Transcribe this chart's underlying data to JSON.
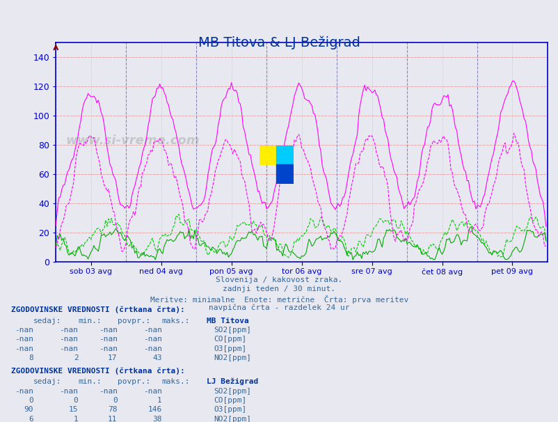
{
  "title": "MB Titova & LJ Bežigrad",
  "title_color": "#003399",
  "background_color": "#e8e8f0",
  "plot_bg_color": "#e8e8f0",
  "y_label": "",
  "x_ticks_labels": [
    "sob 03 avg",
    "ned 04 avg",
    "pon 05 avg",
    "tor 06 avg",
    "sre 07 avg",
    "čet 08 avg",
    "pet 09 avg"
  ],
  "y_ticks": [
    0,
    20,
    40,
    60,
    80,
    100,
    120,
    140
  ],
  "ylim": [
    0,
    150
  ],
  "subtitle_lines": [
    "Slovenija / kakovost zraka.",
    "zadnji teden / 30 minut.",
    "Meritve: minimalne  Enote: metrične  Črta: prva meritev",
    "navpična črta - razdelek 24 ur"
  ],
  "subtitle_color": "#336699",
  "watermark": "www.si-vreme.com",
  "legend_color": "#336699",
  "table_header_color": "#003399",
  "table_text_color": "#336699",
  "colors": {
    "SO2_MB": "#000080",
    "CO_MB": "#00aaff",
    "O3_MB": "#ff00ff",
    "NO2_MB": "#008800",
    "SO2_LJ": "#000080",
    "CO_LJ": "#00ccff",
    "O3_LJ": "#ff00ff",
    "NO2_LJ": "#008800"
  },
  "grid_color": "#aaaaaa",
  "vline_color": "#8888bb",
  "hline_color": "#ffaaaa",
  "axis_color": "#0000cc",
  "n_points": 336,
  "n_days": 7,
  "seed": 42
}
